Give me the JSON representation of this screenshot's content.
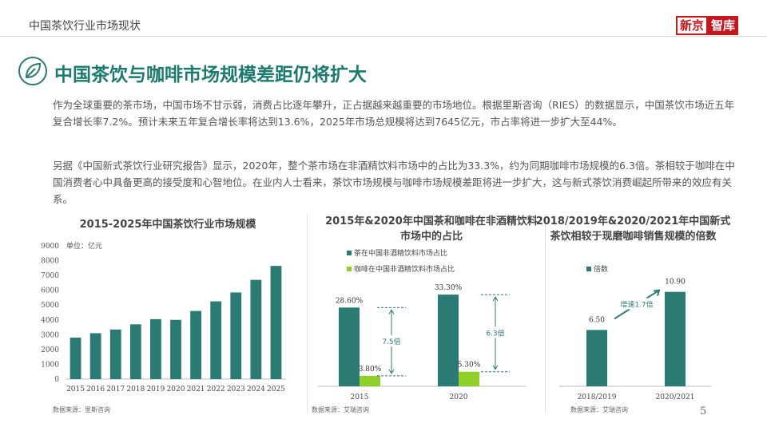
{
  "header": {
    "title": "中国茶饮行业市场现状",
    "brand_part1": "新京",
    "brand_part2": "智库"
  },
  "main": {
    "headline": "中国茶饮与咖啡市场规模差距仍将扩大",
    "para1": "作为全球重要的茶市场，中国市场不甘示弱，消费占比逐年攀升，正占据越来越重要的市场地位。根据里斯咨询（RIES）的数据显示，中国茶饮市场近五年复合增长率7.2%。预计未来五年复合增长率将达到13.6%，2025年市场总规模将达到7645亿元，市占率将进一步扩大至44%。",
    "para2": "另据《中国新式茶饮行业研究报告》显示，2020年，整个茶市场在非酒精饮料市场中的占比为33.3%，约为同期咖啡市场规模的6.3倍。茶相较于咖啡在中国消费者心中具备更高的接受度和心智地位。在业内人士看来，茶饮市场规模与咖啡市场规模差距将进一步扩大，这与新式茶饮消费崛起所带来的效应有关系。"
  },
  "page_number": "5",
  "colors": {
    "teal": "#2a7b73",
    "green": "#8fd12a",
    "headline": "#1a7a6e",
    "brand_red": "#c8161d"
  },
  "chart_data": [
    {
      "type": "bar",
      "title": "2015-2025年中国茶饮行业市场规模",
      "unit_label": "单位：亿元",
      "categories": [
        "2015",
        "2016",
        "2017",
        "2018",
        "2019",
        "2020",
        "2021",
        "2022",
        "2023",
        "2024",
        "2025"
      ],
      "values": [
        2800,
        3100,
        3350,
        3700,
        4050,
        4000,
        4600,
        5250,
        5850,
        6700,
        7645
      ],
      "ylim": [
        0,
        9000
      ],
      "yticks": [
        "0",
        "1000",
        "2000",
        "3000",
        "4000",
        "5000",
        "6000",
        "7000",
        "8000",
        "9000"
      ],
      "grid": false,
      "source": "数据来源：里斯咨询"
    },
    {
      "type": "bar",
      "title": "2015年&2020年中国茶和咖啡在非酒精饮料市场中的占比",
      "categories": [
        "2015",
        "2020"
      ],
      "series": [
        {
          "name": "茶在中国非酒精饮料市场占比",
          "values": [
            28.6,
            33.3
          ],
          "labels": [
            "28.60%",
            "33.30%"
          ]
        },
        {
          "name": "咖啡在中国非酒精饮料市场占比",
          "values": [
            3.8,
            5.3
          ],
          "labels": [
            "3.80%",
            "5.30%"
          ]
        }
      ],
      "ylim": [
        0,
        40
      ],
      "legend": "top-left",
      "annotations": [
        "7.5倍",
        "6.3倍"
      ],
      "source": "数据来源：艾瑞咨询"
    },
    {
      "type": "bar",
      "title": "2018/2019年&2020/2021年中国新式茶饮相较于现磨咖啡销售规模的倍数",
      "categories": [
        "2018/2019",
        "2020/2021"
      ],
      "series": [
        {
          "name": "倍数",
          "values": [
            6.5,
            10.9
          ],
          "labels": [
            "6.50",
            "10.90"
          ]
        }
      ],
      "ylim": [
        0,
        14
      ],
      "legend": "top-left",
      "annotations": [
        "增速1.7倍"
      ],
      "source": "数据来源：艾瑞咨询"
    }
  ]
}
